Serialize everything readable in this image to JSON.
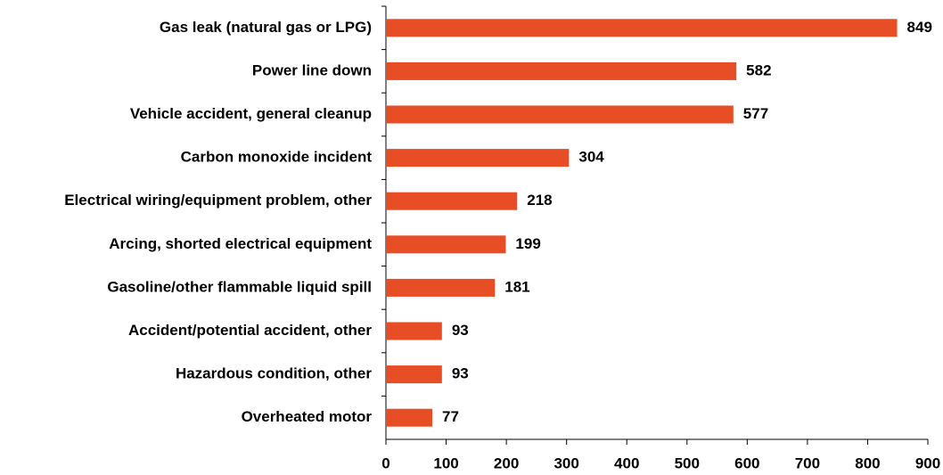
{
  "chart_data": {
    "type": "bar",
    "orientation": "horizontal",
    "categories": [
      "Gas leak (natural gas or LPG)",
      "Power line down",
      "Vehicle accident, general cleanup",
      "Carbon monoxide incident",
      "Electrical wiring/equipment problem, other",
      "Arcing, shorted electrical equipment",
      "Gasoline/other flammable liquid spill",
      "Accident/potential accident, other",
      "Hazardous condition, other",
      "Overheated motor"
    ],
    "values": [
      849,
      582,
      577,
      304,
      218,
      199,
      181,
      93,
      93,
      77
    ],
    "color": "#e84e26",
    "xlim": [
      0,
      900
    ],
    "xticks": [
      0,
      100,
      200,
      300,
      400,
      500,
      600,
      700,
      800,
      900
    ],
    "grid": false
  }
}
